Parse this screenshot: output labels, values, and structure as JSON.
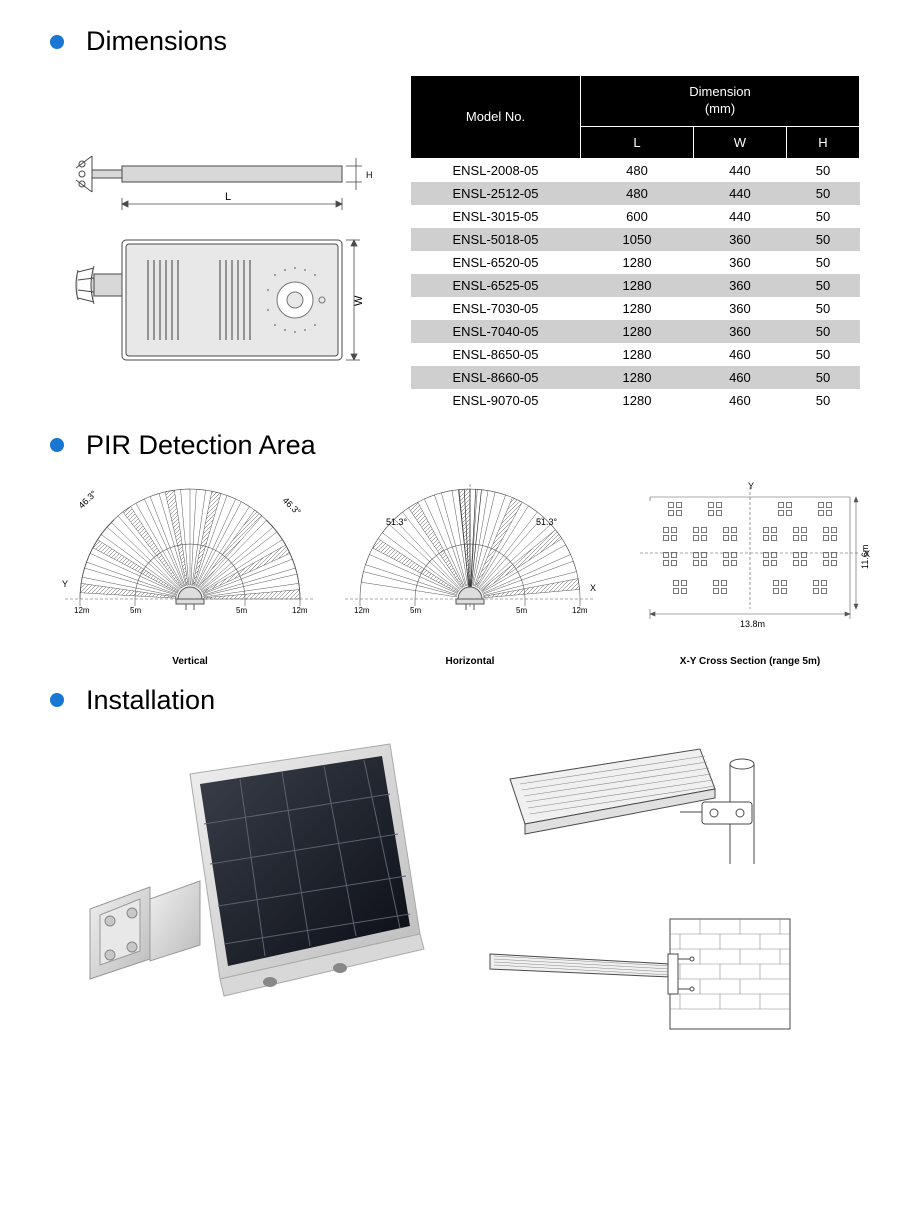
{
  "colors": {
    "bullet": "#1976d2",
    "tableHeaderBg": "#000000",
    "tableHeaderFg": "#ffffff",
    "rowAltBg": "#cfcfcf",
    "diagramStroke": "#4a4a4a",
    "diagramFill": "#d8d8d8",
    "pirLine": "#555555"
  },
  "sections": {
    "dimensions": {
      "title": "Dimensions"
    },
    "pir": {
      "title": "PIR Detection Area"
    },
    "installation": {
      "title": "Installation"
    }
  },
  "dimTable": {
    "headerModel": "Model No.",
    "headerGroup": "Dimension\n(mm)",
    "cols": [
      "L",
      "W",
      "H"
    ],
    "rows": [
      {
        "model": "ENSL-2008-05",
        "L": "480",
        "W": "440",
        "H": "50"
      },
      {
        "model": "ENSL-2512-05",
        "L": "480",
        "W": "440",
        "H": "50"
      },
      {
        "model": "ENSL-3015-05",
        "L": "600",
        "W": "440",
        "H": "50"
      },
      {
        "model": "ENSL-5018-05",
        "L": "1050",
        "W": "360",
        "H": "50"
      },
      {
        "model": "ENSL-6520-05",
        "L": "1280",
        "W": "360",
        "H": "50"
      },
      {
        "model": "ENSL-6525-05",
        "L": "1280",
        "W": "360",
        "H": "50"
      },
      {
        "model": "ENSL-7030-05",
        "L": "1280",
        "W": "360",
        "H": "50"
      },
      {
        "model": "ENSL-7040-05",
        "L": "1280",
        "W": "360",
        "H": "50"
      },
      {
        "model": "ENSL-8650-05",
        "L": "1280",
        "W": "460",
        "H": "50"
      },
      {
        "model": "ENSL-8660-05",
        "L": "1280",
        "W": "460",
        "H": "50"
      },
      {
        "model": "ENSL-9070-05",
        "L": "1280",
        "W": "460",
        "H": "50"
      }
    ]
  },
  "dimDiagram": {
    "labels": {
      "L": "L",
      "W": "W",
      "H": "H"
    }
  },
  "pir": {
    "vertical": {
      "label": "Vertical",
      "angle": "46.3°",
      "axisY": "Y",
      "ticks": [
        "12m",
        "5m",
        "5m",
        "12m"
      ]
    },
    "horizontal": {
      "label": "Horizontal",
      "angle": "51.3°",
      "axisX": "X",
      "ticks": [
        "12m",
        "5m",
        "5m",
        "12m"
      ]
    },
    "cross": {
      "label": "X-Y Cross Section (range 5m)",
      "axisX": "X",
      "axisY": "Y",
      "width": "13.8m",
      "height": "11.6m"
    }
  }
}
